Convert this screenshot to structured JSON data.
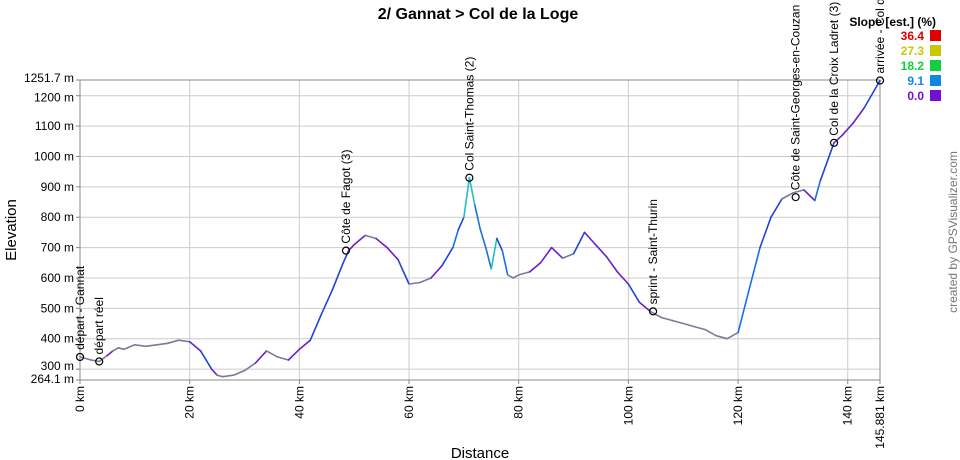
{
  "chart_data": {
    "type": "area",
    "title": "2/ Gannat > Col de la Loge",
    "xlabel": "Distance",
    "ylabel": "Elevation",
    "xlim": [
      0,
      145.881
    ],
    "ylim": [
      264.1,
      1251.7
    ],
    "x_ticks": [
      {
        "value": 0,
        "label": "0 km"
      },
      {
        "value": 20,
        "label": "20 km"
      },
      {
        "value": 40,
        "label": "40 km"
      },
      {
        "value": 60,
        "label": "60 km"
      },
      {
        "value": 80,
        "label": "80 km"
      },
      {
        "value": 100,
        "label": "100 km"
      },
      {
        "value": 120,
        "label": "120 km"
      },
      {
        "value": 140,
        "label": "140 km"
      },
      {
        "value": 145.881,
        "label": "145.881 km"
      }
    ],
    "y_ticks": [
      {
        "value": 264.1,
        "label": "264.1 m"
      },
      {
        "value": 300,
        "label": "300 m"
      },
      {
        "value": 400,
        "label": "400 m"
      },
      {
        "value": 500,
        "label": "500 m"
      },
      {
        "value": 600,
        "label": "600 m"
      },
      {
        "value": 700,
        "label": "700 m"
      },
      {
        "value": 800,
        "label": "800 m"
      },
      {
        "value": 900,
        "label": "900 m"
      },
      {
        "value": 1000,
        "label": "1000 m"
      },
      {
        "value": 1100,
        "label": "1100 m"
      },
      {
        "value": 1200,
        "label": "1200 m"
      },
      {
        "value": 1251.7,
        "label": "1251.7 m"
      }
    ],
    "grid": true,
    "legend": {
      "title": "Slope [est.] (%)",
      "position": "top-right",
      "entries": [
        {
          "label": "36.4",
          "color": "#e00000"
        },
        {
          "label": "27.3",
          "color": "#c8c800"
        },
        {
          "label": "18.2",
          "color": "#10d040"
        },
        {
          "label": "9.1",
          "color": "#1088e0"
        },
        {
          "label": "0.0",
          "color": "#7010d0"
        }
      ]
    },
    "series": [
      {
        "x": [
          0,
          2,
          3.5,
          5,
          6,
          7,
          8,
          10,
          12,
          14,
          16,
          18,
          20,
          22,
          23,
          24,
          25,
          26,
          28,
          30,
          32,
          34,
          36,
          38,
          40,
          42,
          44,
          46,
          48,
          49,
          50,
          52,
          54,
          56,
          58,
          60,
          62,
          64,
          66,
          68,
          69,
          70,
          71,
          72,
          73,
          74,
          75,
          76,
          77,
          78,
          79,
          80,
          82,
          84,
          86,
          88,
          90,
          92,
          94,
          96,
          98,
          100,
          102,
          104,
          106,
          108,
          110,
          112,
          114,
          116,
          118,
          120,
          122,
          124,
          126,
          128,
          130,
          132,
          134,
          135,
          137.5,
          139,
          141,
          143,
          145.881
        ],
        "y": [
          340,
          330,
          325,
          345,
          360,
          370,
          365,
          380,
          375,
          380,
          385,
          395,
          390,
          360,
          330,
          300,
          280,
          275,
          280,
          295,
          320,
          360,
          340,
          330,
          365,
          395,
          480,
          560,
          650,
          690,
          710,
          740,
          730,
          700,
          660,
          580,
          585,
          600,
          640,
          700,
          760,
          800,
          930,
          840,
          760,
          700,
          630,
          730,
          690,
          610,
          600,
          610,
          620,
          650,
          700,
          665,
          680,
          750,
          710,
          670,
          620,
          580,
          520,
          490,
          470,
          460,
          450,
          440,
          430,
          410,
          400,
          420,
          560,
          700,
          800,
          860,
          880,
          890,
          855,
          920,
          1045,
          1070,
          1110,
          1160,
          1250
        ]
      }
    ],
    "waypoints": [
      {
        "x": 0,
        "y": 340,
        "label": "départ - Gannat"
      },
      {
        "x": 3.5,
        "y": 325,
        "label": "départ réel"
      },
      {
        "x": 48.5,
        "y": 690,
        "label": "Côte de Fagot (3)"
      },
      {
        "x": 71,
        "y": 930,
        "label": "Col Saint-Thomas (2)"
      },
      {
        "x": 104.5,
        "y": 490,
        "label": "sprint - Saint-Thurin"
      },
      {
        "x": 130.5,
        "y": 866,
        "label": "Côte de Saint-Georges-en-Couzan"
      },
      {
        "x": 137.5,
        "y": 1045,
        "label": "Col de la Croix Ladret (3)"
      },
      {
        "x": 145.881,
        "y": 1250,
        "label": "arrivée - Col de"
      }
    ]
  },
  "credit": "created by GPSVisualizer.com"
}
